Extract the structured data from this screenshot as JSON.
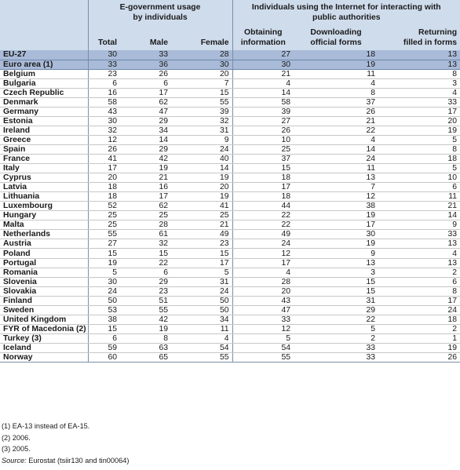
{
  "headers": {
    "group1": "E-government usage by individuals",
    "group2": "Individuals using the Internet for interacting with public authorities",
    "columns": [
      "Total",
      "Male",
      "Female",
      "Obtaining information",
      "Downloading official forms",
      "Returning filled in forms"
    ]
  },
  "aggregates": [
    {
      "name": "EU-27",
      "values": [
        "30",
        "33",
        "28",
        "27",
        "18",
        "13"
      ]
    },
    {
      "name": "Euro area (1)",
      "values": [
        "33",
        "36",
        "30",
        "30",
        "19",
        "13"
      ]
    }
  ],
  "rows": [
    {
      "name": "Belgium",
      "values": [
        "23",
        "26",
        "20",
        "21",
        "11",
        "8"
      ]
    },
    {
      "name": "Bulgaria",
      "values": [
        "6",
        "6",
        "7",
        "4",
        "4",
        "3"
      ]
    },
    {
      "name": "Czech Republic",
      "values": [
        "16",
        "17",
        "15",
        "14",
        "8",
        "4"
      ]
    },
    {
      "name": "Denmark",
      "values": [
        "58",
        "62",
        "55",
        "58",
        "37",
        "33"
      ]
    },
    {
      "name": "Germany",
      "values": [
        "43",
        "47",
        "39",
        "39",
        "26",
        "17"
      ]
    },
    {
      "name": "Estonia",
      "values": [
        "30",
        "29",
        "32",
        "27",
        "21",
        "20"
      ]
    },
    {
      "name": "Ireland",
      "values": [
        "32",
        "34",
        "31",
        "26",
        "22",
        "19"
      ]
    },
    {
      "name": "Greece",
      "values": [
        "12",
        "14",
        "9",
        "10",
        "4",
        "5"
      ]
    },
    {
      "name": "Spain",
      "values": [
        "26",
        "29",
        "24",
        "25",
        "14",
        "8"
      ]
    },
    {
      "name": "France",
      "values": [
        "41",
        "42",
        "40",
        "37",
        "24",
        "18"
      ]
    },
    {
      "name": "Italy",
      "values": [
        "17",
        "19",
        "14",
        "15",
        "11",
        "5"
      ]
    },
    {
      "name": "Cyprus",
      "values": [
        "20",
        "21",
        "19",
        "18",
        "13",
        "10"
      ]
    },
    {
      "name": "Latvia",
      "values": [
        "18",
        "16",
        "20",
        "17",
        "7",
        "6"
      ]
    },
    {
      "name": "Lithuania",
      "values": [
        "18",
        "17",
        "19",
        "18",
        "12",
        "11"
      ]
    },
    {
      "name": "Luxembourg",
      "values": [
        "52",
        "62",
        "41",
        "44",
        "38",
        "21"
      ]
    },
    {
      "name": "Hungary",
      "values": [
        "25",
        "25",
        "25",
        "22",
        "19",
        "14"
      ]
    },
    {
      "name": "Malta",
      "values": [
        "25",
        "28",
        "21",
        "22",
        "17",
        "9"
      ]
    },
    {
      "name": "Netherlands",
      "values": [
        "55",
        "61",
        "49",
        "49",
        "30",
        "33"
      ]
    },
    {
      "name": "Austria",
      "values": [
        "27",
        "32",
        "23",
        "24",
        "19",
        "13"
      ]
    },
    {
      "name": "Poland",
      "values": [
        "15",
        "15",
        "15",
        "12",
        "9",
        "4"
      ]
    },
    {
      "name": "Portugal",
      "values": [
        "19",
        "22",
        "17",
        "17",
        "13",
        "13"
      ]
    },
    {
      "name": "Romania",
      "values": [
        "5",
        "6",
        "5",
        "4",
        "3",
        "2"
      ]
    },
    {
      "name": "Slovenia",
      "values": [
        "30",
        "29",
        "31",
        "28",
        "15",
        "6"
      ]
    },
    {
      "name": "Slovakia",
      "values": [
        "24",
        "23",
        "24",
        "20",
        "15",
        "8"
      ]
    },
    {
      "name": "Finland",
      "values": [
        "50",
        "51",
        "50",
        "43",
        "31",
        "17"
      ]
    },
    {
      "name": "Sweden",
      "values": [
        "53",
        "55",
        "50",
        "47",
        "29",
        "24"
      ]
    },
    {
      "name": "United Kingdom",
      "values": [
        "38",
        "42",
        "34",
        "33",
        "22",
        "18"
      ]
    },
    {
      "name": "FYR of Macedonia (2)",
      "values": [
        "15",
        "19",
        "11",
        "12",
        "5",
        "2"
      ]
    },
    {
      "name": "Turkey (3)",
      "values": [
        "6",
        "8",
        "4",
        "5",
        "2",
        "1"
      ]
    },
    {
      "name": "Iceland",
      "values": [
        "59",
        "63",
        "54",
        "54",
        "33",
        "19"
      ]
    },
    {
      "name": "Norway",
      "values": [
        "60",
        "65",
        "55",
        "55",
        "33",
        "26"
      ]
    }
  ],
  "notes": {
    "n1": "(1) EA-13 instead of EA-15.",
    "n2": "(2) 2006.",
    "n3": "(3) 2005.",
    "source_label": "Source:",
    "source_text": " Eurostat (tsiir130 and tin00064)"
  },
  "colors": {
    "header_bg": "#cfdcec",
    "aggregate_bg": "#a9bbd8"
  }
}
